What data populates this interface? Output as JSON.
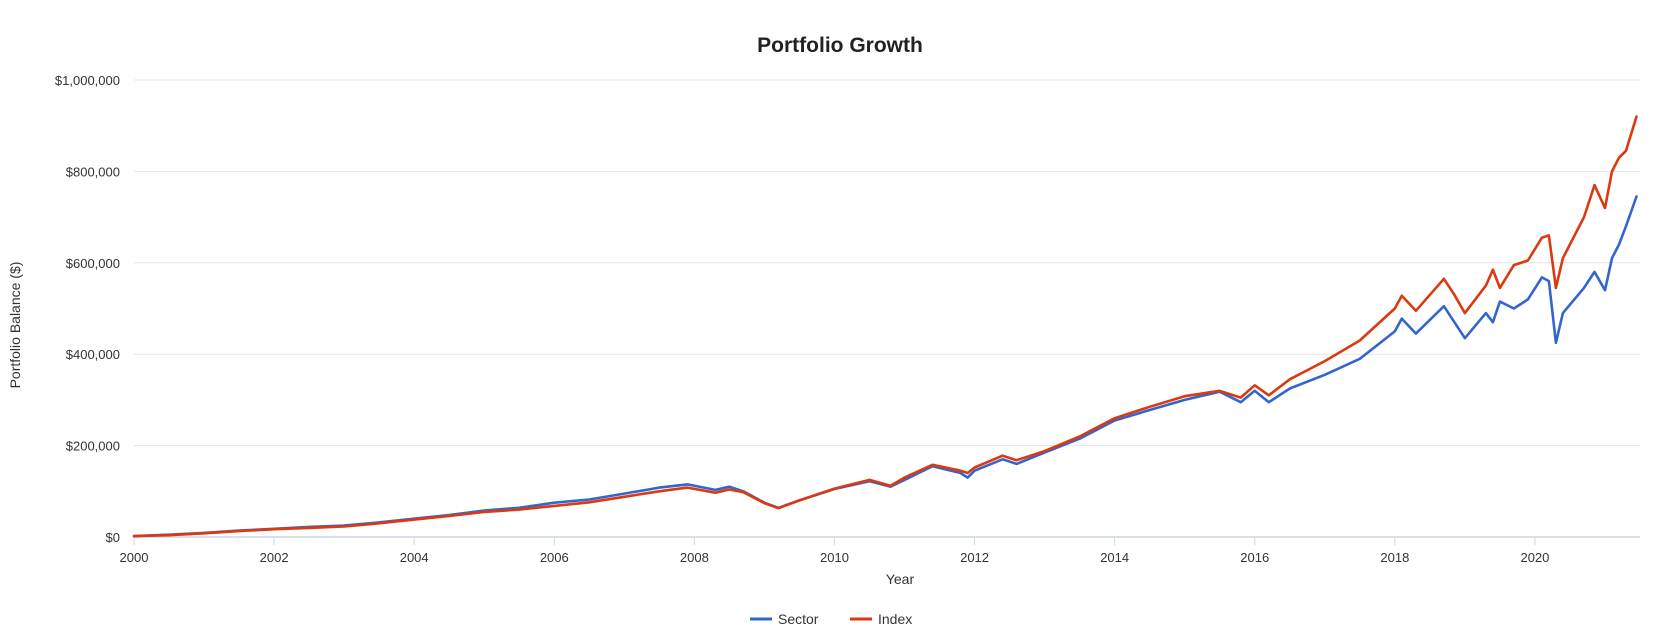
{
  "chart_data": {
    "type": "line",
    "title": "Portfolio Growth",
    "xlabel": "Year",
    "ylabel": "Portfolio Balance ($)",
    "xlim": [
      2000,
      2021.5
    ],
    "ylim": [
      0,
      1000000
    ],
    "grid": true,
    "legend_position": "bottom",
    "x_ticks": [
      2000,
      2002,
      2004,
      2006,
      2008,
      2010,
      2012,
      2014,
      2016,
      2018,
      2020
    ],
    "x_tick_labels": [
      "2000",
      "2002",
      "2004",
      "2006",
      "2008",
      "2010",
      "2012",
      "2014",
      "2016",
      "2018",
      "2020"
    ],
    "y_ticks": [
      0,
      200000,
      400000,
      600000,
      800000,
      1000000
    ],
    "y_tick_labels": [
      "$0",
      "$200,000",
      "$400,000",
      "$600,000",
      "$800,000",
      "$1,000,000"
    ],
    "series": [
      {
        "name": "Sector",
        "color": "#3366cc",
        "points": [
          [
            2000.0,
            2000
          ],
          [
            2000.5,
            5000
          ],
          [
            2001.0,
            9000
          ],
          [
            2001.5,
            14000
          ],
          [
            2002.0,
            18000
          ],
          [
            2002.5,
            22000
          ],
          [
            2003.0,
            25000
          ],
          [
            2003.5,
            32000
          ],
          [
            2004.0,
            40000
          ],
          [
            2004.5,
            48000
          ],
          [
            2005.0,
            58000
          ],
          [
            2005.5,
            64000
          ],
          [
            2006.0,
            75000
          ],
          [
            2006.5,
            82000
          ],
          [
            2007.0,
            95000
          ],
          [
            2007.5,
            108000
          ],
          [
            2007.9,
            115000
          ],
          [
            2008.3,
            103000
          ],
          [
            2008.5,
            110000
          ],
          [
            2008.7,
            100000
          ],
          [
            2009.0,
            75000
          ],
          [
            2009.2,
            64000
          ],
          [
            2009.5,
            80000
          ],
          [
            2010.0,
            105000
          ],
          [
            2010.5,
            122000
          ],
          [
            2010.8,
            110000
          ],
          [
            2011.0,
            125000
          ],
          [
            2011.4,
            155000
          ],
          [
            2011.8,
            140000
          ],
          [
            2011.9,
            130000
          ],
          [
            2012.0,
            145000
          ],
          [
            2012.4,
            170000
          ],
          [
            2012.6,
            160000
          ],
          [
            2013.0,
            185000
          ],
          [
            2013.5,
            215000
          ],
          [
            2014.0,
            255000
          ],
          [
            2014.5,
            278000
          ],
          [
            2015.0,
            300000
          ],
          [
            2015.5,
            318000
          ],
          [
            2015.8,
            295000
          ],
          [
            2016.0,
            320000
          ],
          [
            2016.2,
            295000
          ],
          [
            2016.5,
            325000
          ],
          [
            2017.0,
            355000
          ],
          [
            2017.5,
            390000
          ],
          [
            2018.0,
            450000
          ],
          [
            2018.1,
            478000
          ],
          [
            2018.3,
            445000
          ],
          [
            2018.7,
            505000
          ],
          [
            2018.85,
            470000
          ],
          [
            2019.0,
            435000
          ],
          [
            2019.3,
            490000
          ],
          [
            2019.4,
            470000
          ],
          [
            2019.5,
            515000
          ],
          [
            2019.7,
            500000
          ],
          [
            2019.9,
            520000
          ],
          [
            2020.1,
            568000
          ],
          [
            2020.2,
            560000
          ],
          [
            2020.3,
            425000
          ],
          [
            2020.4,
            490000
          ],
          [
            2020.7,
            545000
          ],
          [
            2020.85,
            580000
          ],
          [
            2021.0,
            540000
          ],
          [
            2021.1,
            610000
          ],
          [
            2021.2,
            640000
          ],
          [
            2021.3,
            680000
          ],
          [
            2021.45,
            745000
          ]
        ]
      },
      {
        "name": "Index",
        "color": "#dc3912",
        "points": [
          [
            2000.0,
            2000
          ],
          [
            2000.5,
            4000
          ],
          [
            2001.0,
            8000
          ],
          [
            2001.5,
            13000
          ],
          [
            2002.0,
            17000
          ],
          [
            2002.5,
            20000
          ],
          [
            2003.0,
            23000
          ],
          [
            2003.5,
            30000
          ],
          [
            2004.0,
            38000
          ],
          [
            2004.5,
            46000
          ],
          [
            2005.0,
            55000
          ],
          [
            2005.5,
            60000
          ],
          [
            2006.0,
            68000
          ],
          [
            2006.5,
            76000
          ],
          [
            2007.0,
            88000
          ],
          [
            2007.5,
            100000
          ],
          [
            2007.9,
            108000
          ],
          [
            2008.3,
            97000
          ],
          [
            2008.5,
            104000
          ],
          [
            2008.7,
            98000
          ],
          [
            2009.0,
            74000
          ],
          [
            2009.2,
            63000
          ],
          [
            2009.5,
            80000
          ],
          [
            2010.0,
            106000
          ],
          [
            2010.5,
            125000
          ],
          [
            2010.8,
            112000
          ],
          [
            2011.0,
            130000
          ],
          [
            2011.4,
            158000
          ],
          [
            2011.8,
            145000
          ],
          [
            2011.9,
            140000
          ],
          [
            2012.0,
            152000
          ],
          [
            2012.4,
            178000
          ],
          [
            2012.6,
            168000
          ],
          [
            2013.0,
            188000
          ],
          [
            2013.5,
            220000
          ],
          [
            2014.0,
            260000
          ],
          [
            2014.5,
            285000
          ],
          [
            2015.0,
            308000
          ],
          [
            2015.5,
            320000
          ],
          [
            2015.8,
            305000
          ],
          [
            2016.0,
            332000
          ],
          [
            2016.2,
            310000
          ],
          [
            2016.5,
            345000
          ],
          [
            2017.0,
            385000
          ],
          [
            2017.5,
            430000
          ],
          [
            2018.0,
            500000
          ],
          [
            2018.1,
            528000
          ],
          [
            2018.3,
            495000
          ],
          [
            2018.7,
            565000
          ],
          [
            2018.85,
            530000
          ],
          [
            2019.0,
            490000
          ],
          [
            2019.3,
            550000
          ],
          [
            2019.4,
            585000
          ],
          [
            2019.5,
            545000
          ],
          [
            2019.7,
            595000
          ],
          [
            2019.9,
            605000
          ],
          [
            2020.1,
            655000
          ],
          [
            2020.2,
            660000
          ],
          [
            2020.3,
            545000
          ],
          [
            2020.4,
            610000
          ],
          [
            2020.7,
            700000
          ],
          [
            2020.85,
            770000
          ],
          [
            2021.0,
            720000
          ],
          [
            2021.1,
            800000
          ],
          [
            2021.2,
            830000
          ],
          [
            2021.3,
            845000
          ],
          [
            2021.45,
            920000
          ]
        ]
      }
    ]
  }
}
